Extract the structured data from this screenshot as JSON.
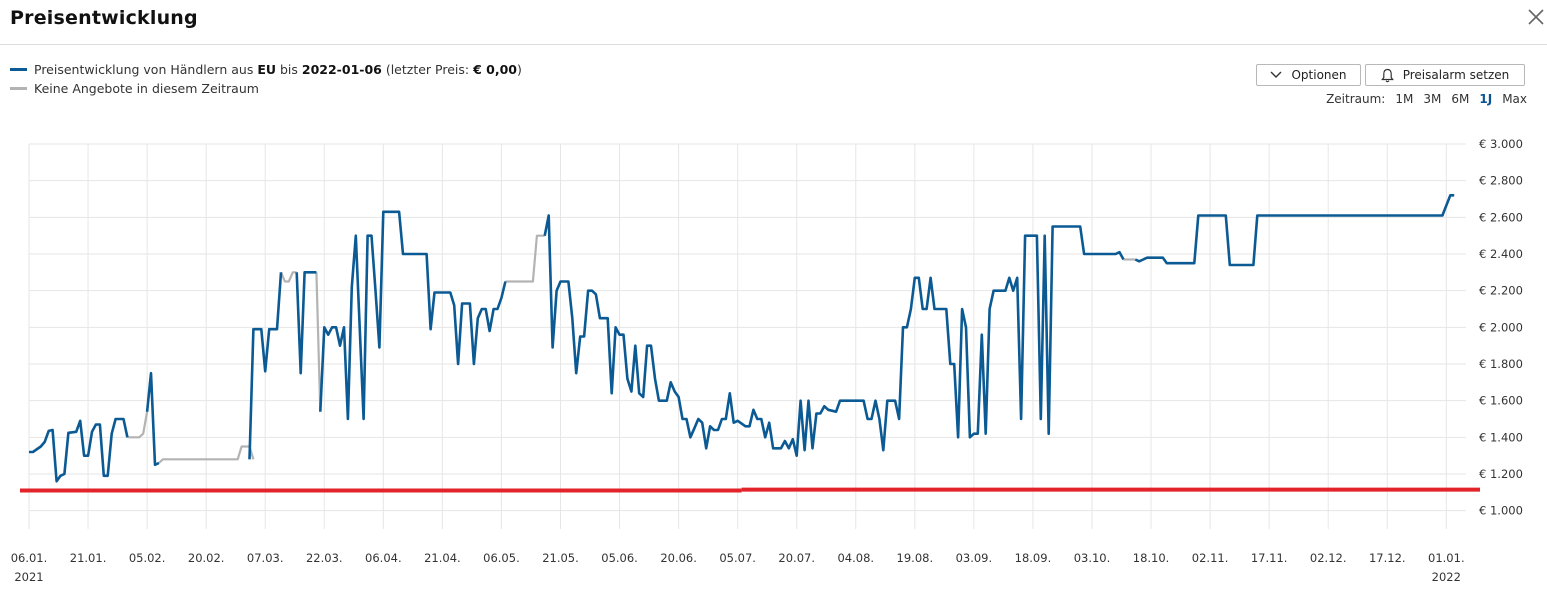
{
  "header": {
    "title": "Preisentwicklung",
    "close_icon": "close-icon"
  },
  "legend": {
    "series1": {
      "color": "#0b5a93",
      "text_a": "Preisentwicklung von Händlern aus ",
      "region": "EU",
      "text_b": " bis ",
      "date": "2022-01-06",
      "text_c": " (letzter Preis: ",
      "last_price": "€ 0,00",
      "text_d": ")"
    },
    "series2": {
      "color": "#b3b3b3",
      "text": "Keine Angebote in diesem Zeitraum"
    }
  },
  "buttons": {
    "options": "Optionen",
    "options_icon": "chevron-down-icon",
    "alarm": "Preisalarm setzen",
    "alarm_icon": "bell-icon"
  },
  "range": {
    "label": "Zeitraum:",
    "options": [
      "1M",
      "3M",
      "6M",
      "1J",
      "Max"
    ],
    "active": "1J"
  },
  "chart_data": {
    "type": "line",
    "ylim": [
      900,
      3000
    ],
    "y_ticks": [
      1000,
      1200,
      1400,
      1600,
      1800,
      2000,
      2200,
      2400,
      2600,
      2800,
      3000
    ],
    "y_tick_labels": [
      "€ 1.000",
      "€ 1.200",
      "€ 1.400",
      "€ 1.600",
      "€ 1.800",
      "€ 2.000",
      "€ 2.200",
      "€ 2.400",
      "€ 2.600",
      "€ 2.800",
      "€ 3.000"
    ],
    "x_ticks": [
      0,
      15,
      30,
      45,
      60,
      75,
      90,
      105,
      120,
      135,
      150,
      165,
      180,
      195,
      210,
      225,
      240,
      255,
      270,
      285,
      300,
      315,
      330,
      345,
      360
    ],
    "x_tick_labels": [
      "06.01.",
      "21.01.",
      "05.02.",
      "20.02.",
      "07.03.",
      "22.03.",
      "06.04.",
      "21.04.",
      "06.05.",
      "21.05.",
      "05.06.",
      "20.06.",
      "05.07.",
      "20.07.",
      "04.08.",
      "19.08.",
      "03.09.",
      "18.09.",
      "03.10.",
      "18.10.",
      "02.11.",
      "17.11.",
      "02.12.",
      "17.12.",
      "01.01."
    ],
    "x_year_labels": [
      {
        "x": 0,
        "label": "2021"
      },
      {
        "x": 360,
        "label": "2022"
      }
    ],
    "x_domain": [
      0,
      365
    ],
    "colors": {
      "available": "#0b5a93",
      "no_offers": "#b3b3b3",
      "marker": "#e2232a",
      "grid": "#e6e6e6"
    },
    "reference_line": {
      "name": "marker",
      "y_start": 1110,
      "y_end": 1115,
      "x_break": 181
    },
    "series": [
      {
        "name": "Preisentwicklung von Händlern aus EU",
        "segments": [
          [
            [
              0,
              1320
            ],
            [
              1,
              1320
            ],
            [
              3,
              1350
            ],
            [
              4,
              1375
            ],
            [
              5,
              1435
            ],
            [
              6,
              1440
            ],
            [
              7,
              1160
            ],
            [
              8,
              1190
            ],
            [
              9,
              1200
            ],
            [
              10,
              1425
            ],
            [
              12,
              1430
            ],
            [
              13,
              1490
            ],
            [
              14,
              1300
            ],
            [
              15,
              1300
            ],
            [
              16,
              1430
            ],
            [
              17,
              1470
            ],
            [
              18,
              1470
            ],
            [
              19,
              1190
            ],
            [
              20,
              1190
            ],
            [
              21,
              1420
            ],
            [
              22,
              1500
            ],
            [
              24,
              1500
            ],
            [
              25,
              1400
            ]
          ],
          [
            [
              30,
              1540
            ],
            [
              31,
              1750
            ],
            [
              32,
              1250
            ],
            [
              33,
              1260
            ]
          ],
          [
            [
              56,
              1280
            ],
            [
              57,
              1990
            ],
            [
              59,
              1990
            ],
            [
              60,
              1760
            ],
            [
              61,
              1990
            ],
            [
              63,
              1990
            ],
            [
              64,
              2300
            ]
          ],
          [
            [
              68,
              2300
            ],
            [
              69,
              1750
            ],
            [
              70,
              2300
            ],
            [
              73,
              2300
            ]
          ],
          [
            [
              74,
              1540
            ],
            [
              75,
              2000
            ],
            [
              76,
              1960
            ],
            [
              77,
              2000
            ],
            [
              78,
              2000
            ],
            [
              79,
              1900
            ],
            [
              80,
              2000
            ],
            [
              81,
              1500
            ],
            [
              82,
              2220
            ],
            [
              83,
              2500
            ],
            [
              84,
              2000
            ],
            [
              85,
              1500
            ],
            [
              86,
              2500
            ],
            [
              87,
              2500
            ],
            [
              88,
              2200
            ],
            [
              89,
              1890
            ],
            [
              90,
              2630
            ],
            [
              94,
              2630
            ],
            [
              95,
              2400
            ],
            [
              101,
              2400
            ],
            [
              102,
              1990
            ],
            [
              103,
              2190
            ],
            [
              107,
              2190
            ],
            [
              108,
              2120
            ],
            [
              109,
              1800
            ],
            [
              110,
              2130
            ],
            [
              112,
              2130
            ],
            [
              113,
              1800
            ],
            [
              114,
              2050
            ],
            [
              115,
              2100
            ],
            [
              116,
              2100
            ],
            [
              117,
              1980
            ],
            [
              118,
              2100
            ],
            [
              119,
              2100
            ],
            [
              120,
              2160
            ],
            [
              121,
              2250
            ]
          ],
          [
            [
              131,
              2500
            ],
            [
              132,
              2610
            ],
            [
              133,
              1890
            ],
            [
              134,
              2200
            ],
            [
              135,
              2250
            ],
            [
              137,
              2250
            ],
            [
              138,
              2050
            ],
            [
              139,
              1750
            ],
            [
              140,
              1950
            ],
            [
              141,
              1950
            ],
            [
              142,
              2200
            ],
            [
              143,
              2200
            ],
            [
              144,
              2180
            ],
            [
              145,
              2050
            ],
            [
              147,
              2050
            ],
            [
              148,
              1640
            ],
            [
              149,
              2000
            ],
            [
              150,
              1960
            ],
            [
              151,
              1960
            ],
            [
              152,
              1720
            ],
            [
              153,
              1650
            ],
            [
              154,
              1900
            ],
            [
              155,
              1640
            ],
            [
              156,
              1620
            ],
            [
              157,
              1900
            ],
            [
              158,
              1900
            ],
            [
              159,
              1720
            ],
            [
              160,
              1600
            ],
            [
              162,
              1600
            ],
            [
              163,
              1700
            ],
            [
              164,
              1650
            ],
            [
              165,
              1620
            ],
            [
              166,
              1500
            ],
            [
              167,
              1500
            ],
            [
              168,
              1400
            ],
            [
              169,
              1450
            ],
            [
              170,
              1500
            ],
            [
              171,
              1480
            ],
            [
              172,
              1340
            ],
            [
              173,
              1460
            ],
            [
              174,
              1440
            ],
            [
              175,
              1440
            ],
            [
              176,
              1500
            ],
            [
              177,
              1500
            ],
            [
              178,
              1640
            ],
            [
              179,
              1480
            ],
            [
              180,
              1490
            ],
            [
              182,
              1460
            ],
            [
              183,
              1460
            ],
            [
              184,
              1550
            ],
            [
              185,
              1500
            ],
            [
              186,
              1500
            ],
            [
              187,
              1400
            ],
            [
              188,
              1480
            ],
            [
              189,
              1340
            ],
            [
              191,
              1340
            ],
            [
              192,
              1380
            ],
            [
              193,
              1340
            ],
            [
              194,
              1390
            ],
            [
              195,
              1300
            ],
            [
              196,
              1600
            ],
            [
              197,
              1330
            ],
            [
              198,
              1600
            ],
            [
              199,
              1340
            ],
            [
              200,
              1530
            ],
            [
              201,
              1530
            ],
            [
              202,
              1570
            ],
            [
              203,
              1550
            ],
            [
              205,
              1540
            ],
            [
              206,
              1600
            ],
            [
              212,
              1600
            ],
            [
              213,
              1500
            ],
            [
              214,
              1500
            ],
            [
              215,
              1600
            ],
            [
              216,
              1500
            ],
            [
              217,
              1330
            ],
            [
              218,
              1600
            ],
            [
              220,
              1600
            ],
            [
              221,
              1500
            ],
            [
              222,
              2000
            ],
            [
              223,
              2000
            ],
            [
              224,
              2100
            ],
            [
              225,
              2270
            ],
            [
              226,
              2270
            ],
            [
              227,
              2100
            ],
            [
              228,
              2100
            ],
            [
              229,
              2270
            ],
            [
              230,
              2100
            ],
            [
              233,
              2100
            ],
            [
              234,
              1800
            ],
            [
              235,
              1800
            ],
            [
              236,
              1400
            ],
            [
              237,
              2100
            ],
            [
              238,
              2000
            ],
            [
              239,
              1400
            ],
            [
              240,
              1420
            ],
            [
              241,
              1420
            ],
            [
              242,
              1960
            ],
            [
              243,
              1420
            ],
            [
              244,
              2100
            ],
            [
              245,
              2200
            ],
            [
              248,
              2200
            ],
            [
              249,
              2270
            ],
            [
              250,
              2200
            ],
            [
              251,
              2270
            ],
            [
              252,
              1500
            ],
            [
              253,
              2500
            ],
            [
              256,
              2500
            ],
            [
              257,
              1500
            ],
            [
              258,
              2500
            ],
            [
              259,
              1420
            ],
            [
              260,
              2550
            ],
            [
              267,
              2550
            ],
            [
              268,
              2400
            ],
            [
              276,
              2400
            ],
            [
              277,
              2410
            ],
            [
              278,
              2370
            ]
          ],
          [
            [
              281,
              2370
            ],
            [
              282,
              2360
            ],
            [
              283,
              2370
            ],
            [
              284,
              2380
            ],
            [
              288,
              2380
            ],
            [
              289,
              2350
            ],
            [
              296,
              2350
            ],
            [
              297,
              2610
            ],
            [
              304,
              2610
            ],
            [
              305,
              2340
            ],
            [
              306,
              2340
            ],
            [
              311,
              2340
            ],
            [
              312,
              2610
            ],
            [
              359,
              2610
            ],
            [
              361,
              2720
            ],
            [
              362,
              2720
            ]
          ]
        ]
      },
      {
        "name": "Keine Angebote in diesem Zeitraum",
        "segments": [
          [
            [
              25,
              1400
            ],
            [
              28,
              1400
            ],
            [
              29,
              1420
            ],
            [
              30,
              1540
            ]
          ],
          [
            [
              33,
              1260
            ],
            [
              34,
              1280
            ],
            [
              53,
              1280
            ],
            [
              54,
              1350
            ],
            [
              56,
              1350
            ],
            [
              57,
              1280
            ]
          ],
          [
            [
              64,
              2300
            ],
            [
              65,
              2250
            ],
            [
              66,
              2250
            ],
            [
              67,
              2300
            ],
            [
              68,
              2300
            ]
          ],
          [
            [
              73,
              2300
            ],
            [
              74,
              1540
            ]
          ],
          [
            [
              121,
              2250
            ],
            [
              128,
              2250
            ],
            [
              129,
              2500
            ],
            [
              131,
              2500
            ]
          ],
          [
            [
              278,
              2370
            ],
            [
              281,
              2370
            ]
          ]
        ]
      }
    ]
  }
}
